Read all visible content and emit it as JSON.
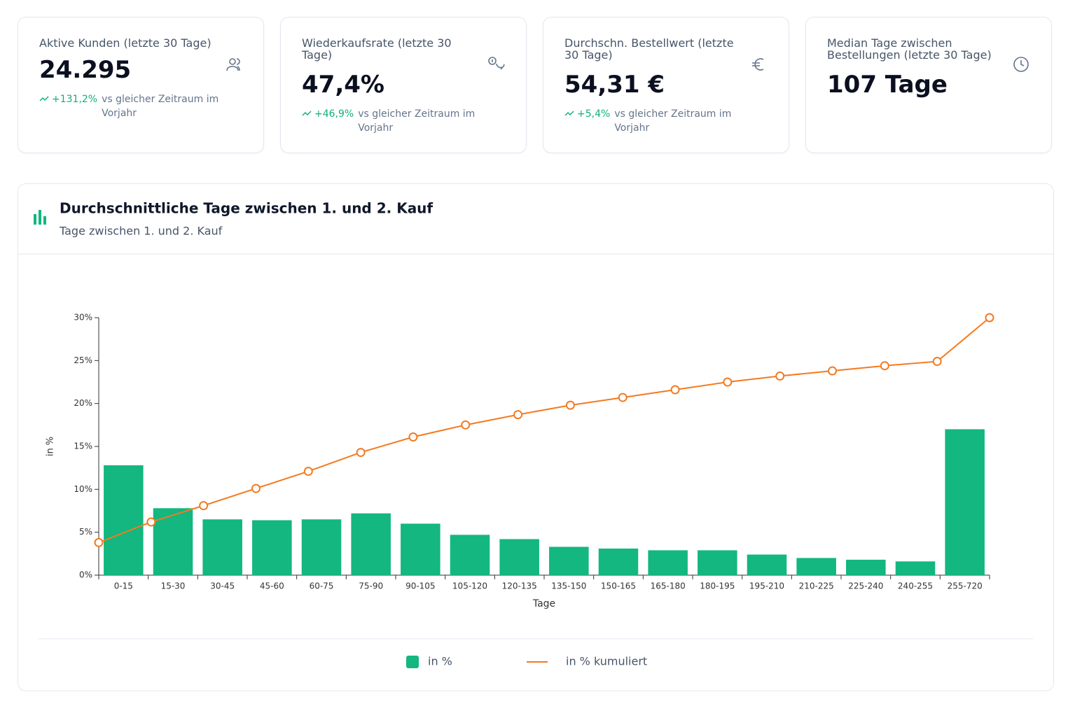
{
  "kpi_cards": [
    {
      "title": "Aktive Kunden (letzte 30 Tage)",
      "value": "24.295",
      "change": "+131,2%",
      "comparison": "vs gleicher Zeitraum im Vorjahr"
    },
    {
      "title": "Wiederkaufsrate (letzte 30 Tage)",
      "value": "47,4%",
      "change": "+46,9%",
      "comparison": "vs gleicher Zeitraum im Vorjahr"
    },
    {
      "title": "Durchschn. Bestellwert (letzte 30 Tage)",
      "value": "54,31 €",
      "change": "+5,4%",
      "comparison": "vs gleicher Zeitraum im Vorjahr"
    },
    {
      "title": "Median Tage zwischen Bestellungen (letzte 30 Tage)",
      "value": "107 Tage"
    }
  ],
  "chart_panel": {
    "title": "Durchschnittliche Tage zwischen 1. und 2. Kauf",
    "subtitle": "Tage zwischen 1. und 2. Kauf"
  },
  "chart_data": {
    "type": "bar",
    "x_label": "Tage",
    "y_label": "in %",
    "categories": [
      "0-15",
      "15-30",
      "30-45",
      "45-60",
      "60-75",
      "75-90",
      "90-105",
      "105-120",
      "120-135",
      "135-150",
      "150-165",
      "165-180",
      "180-195",
      "195-210",
      "210-225",
      "225-240",
      "240-255",
      "255-720"
    ],
    "series": [
      {
        "name": "in %",
        "type": "bar",
        "color": "#13b77f",
        "values": [
          12.8,
          7.8,
          6.5,
          6.4,
          6.5,
          7.2,
          6.0,
          4.7,
          4.2,
          3.3,
          3.1,
          2.9,
          2.9,
          2.4,
          2.0,
          1.8,
          1.6,
          17.0
        ]
      },
      {
        "name": "in % kumuliert",
        "type": "line",
        "color": "#f47a1f",
        "values": [
          3.8,
          6.2,
          8.1,
          10.1,
          12.1,
          14.3,
          16.1,
          17.5,
          18.7,
          19.8,
          20.7,
          21.6,
          22.5,
          23.2,
          23.8,
          24.4,
          24.9,
          30.0
        ]
      }
    ],
    "ylim": [
      0,
      30
    ],
    "yticks": [
      {
        "value": 0,
        "label": "0%"
      },
      {
        "value": 5,
        "label": "5%"
      },
      {
        "value": 10,
        "label": "10%"
      },
      {
        "value": 15,
        "label": "15%"
      },
      {
        "value": 20,
        "label": "20%"
      },
      {
        "value": 25,
        "label": "25%"
      },
      {
        "value": 30,
        "label": "30%"
      }
    ]
  }
}
